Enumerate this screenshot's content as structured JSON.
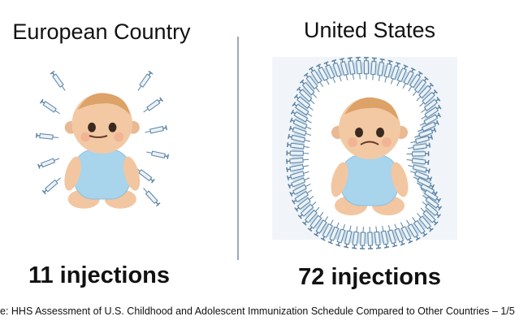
{
  "columns": [
    {
      "title": "European Country",
      "count_label": "11 injections"
    },
    {
      "title": "United States",
      "count_label": "72 injections"
    }
  ],
  "source": "e: HHS Assessment of U.S. Childhood and Adolescent Immunization Schedule Compared to Other Countries – 1/5"
}
